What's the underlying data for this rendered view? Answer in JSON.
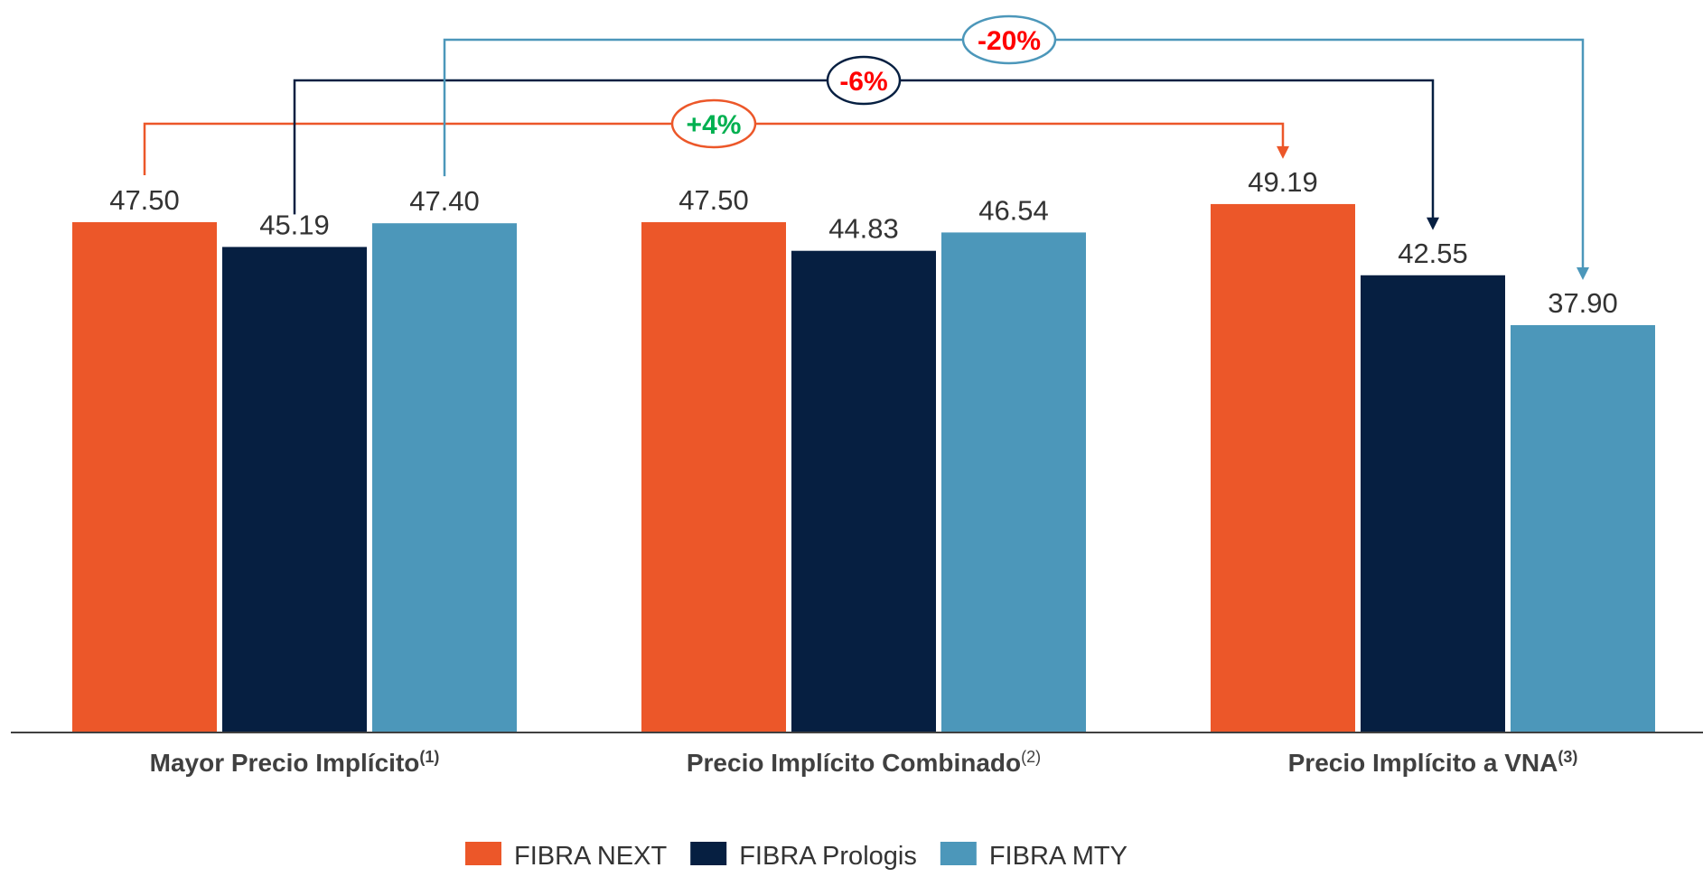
{
  "chart_data": {
    "type": "bar",
    "categories": [
      {
        "label": "Mayor Precio Implícito",
        "note": "(1)",
        "note_bold": true
      },
      {
        "label": "Precio Implícito Combinado",
        "note": "(2)",
        "note_bold": false
      },
      {
        "label": "Precio Implícito a VNA",
        "note": "(3)",
        "note_bold": true
      }
    ],
    "series": [
      {
        "name": "FIBRA NEXT",
        "color": "#EC5729",
        "values": [
          47.5,
          47.5,
          49.19
        ],
        "labels": [
          "47.50",
          "47.50",
          "49.19"
        ]
      },
      {
        "name": "FIBRA Prologis",
        "color": "#061F41",
        "values": [
          45.19,
          44.83,
          42.55
        ],
        "labels": [
          "45.19",
          "44.83",
          "42.55"
        ]
      },
      {
        "name": "FIBRA MTY",
        "color": "#4C97BA",
        "values": [
          47.4,
          46.54,
          37.9
        ],
        "labels": [
          "47.40",
          "46.54",
          "37.90"
        ]
      }
    ],
    "ylim": [
      0,
      55
    ],
    "legend_position": "bottom-center",
    "annotations": [
      {
        "label": "+4%",
        "text_color": "#00B050",
        "line_color": "#EC5729",
        "from": {
          "category": 0,
          "series": 0
        },
        "to": {
          "category": 2,
          "series": 0
        }
      },
      {
        "label": "-6%",
        "text_color": "#FF0000",
        "line_color": "#061F41",
        "from": {
          "category": 0,
          "series": 1
        },
        "to": {
          "category": 2,
          "series": 1
        }
      },
      {
        "label": "-20%",
        "text_color": "#FF0000",
        "line_color": "#4C97BA",
        "from": {
          "category": 0,
          "series": 2
        },
        "to": {
          "category": 2,
          "series": 2
        }
      }
    ]
  }
}
